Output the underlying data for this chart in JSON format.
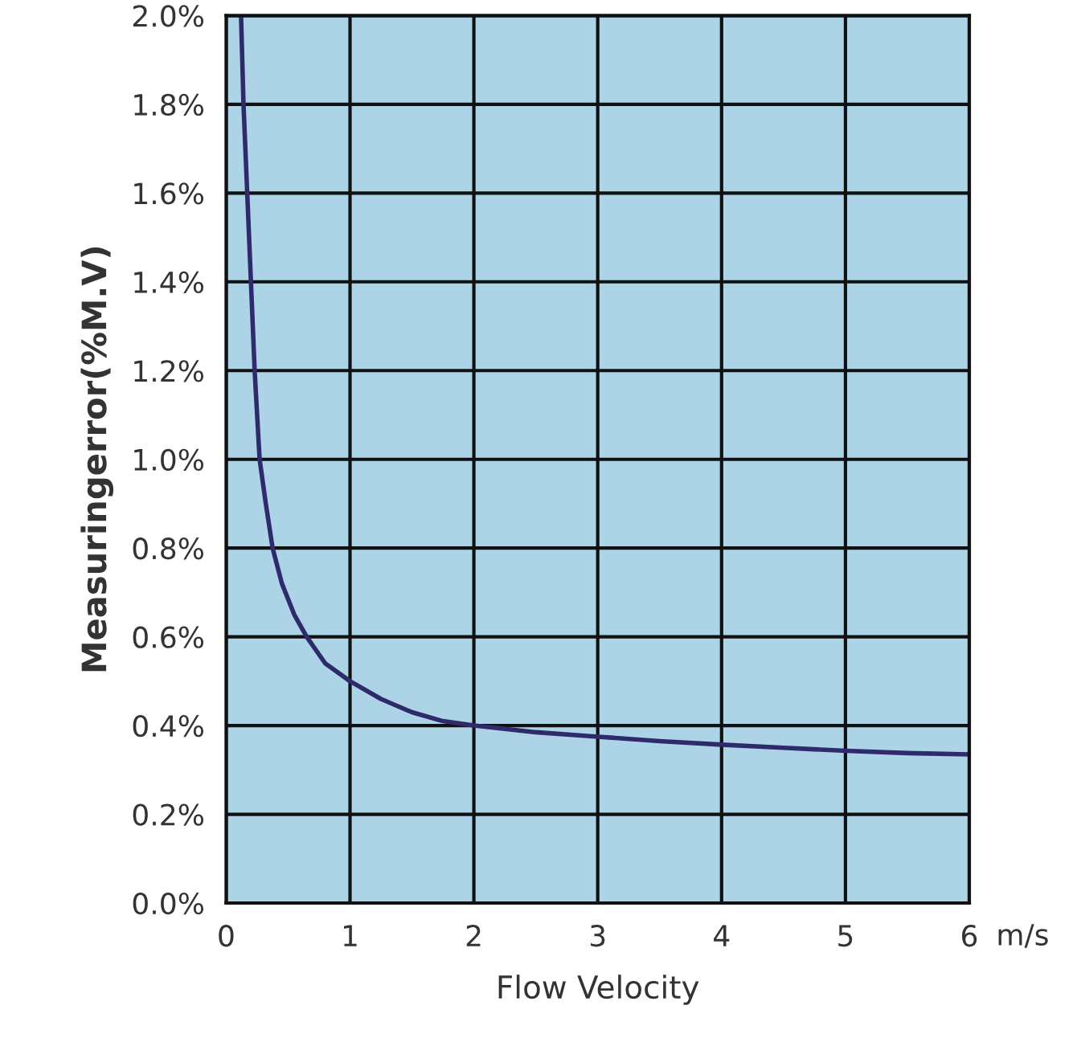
{
  "chart_data": {
    "type": "line",
    "xlabel": "Flow Velocity",
    "ylabel": "Measuringerror(%M.V)",
    "x": [
      0.12,
      0.14,
      0.17,
      0.2,
      0.23,
      0.27,
      0.32,
      0.375,
      0.45,
      0.55,
      0.65,
      0.8,
      1,
      1.25,
      1.5,
      1.75,
      2,
      2.5,
      3,
      3.5,
      4,
      4.5,
      5,
      5.5,
      6
    ],
    "series": [
      {
        "color": "#2e2a6b",
        "values": [
          2.0,
          1.8,
          1.6,
          1.4,
          1.2,
          1.0,
          0.9,
          0.8,
          0.72,
          0.65,
          0.6,
          0.54,
          0.5,
          0.46,
          0.43,
          0.41,
          0.4,
          0.385,
          0.375,
          0.365,
          0.357,
          0.35,
          0.343,
          0.338,
          0.335
        ]
      }
    ],
    "xlim": [
      0,
      6
    ],
    "xticks": [
      0,
      1,
      2,
      3,
      4,
      5,
      6
    ],
    "ylim": [
      0,
      2
    ],
    "yticks": [
      {
        "value": 0,
        "label": "0.0%"
      },
      {
        "value": 0.2,
        "label": "0.2%"
      },
      {
        "value": 0.4,
        "label": "0.4%"
      },
      {
        "value": 0.6,
        "label": "0.6%"
      },
      {
        "value": 0.8,
        "label": "0.8%"
      },
      {
        "value": 1.0,
        "label": "1.0%"
      },
      {
        "value": 1.2,
        "label": "1.2%"
      },
      {
        "value": 1.4,
        "label": "1.4%"
      },
      {
        "value": 1.6,
        "label": "1.6%"
      },
      {
        "value": 1.8,
        "label": "1.8%"
      },
      {
        "value": 2.0,
        "label": "2.0%"
      }
    ],
    "annotations": [
      "m/s"
    ],
    "grid": true,
    "line_style": "solid",
    "marker": "none"
  }
}
